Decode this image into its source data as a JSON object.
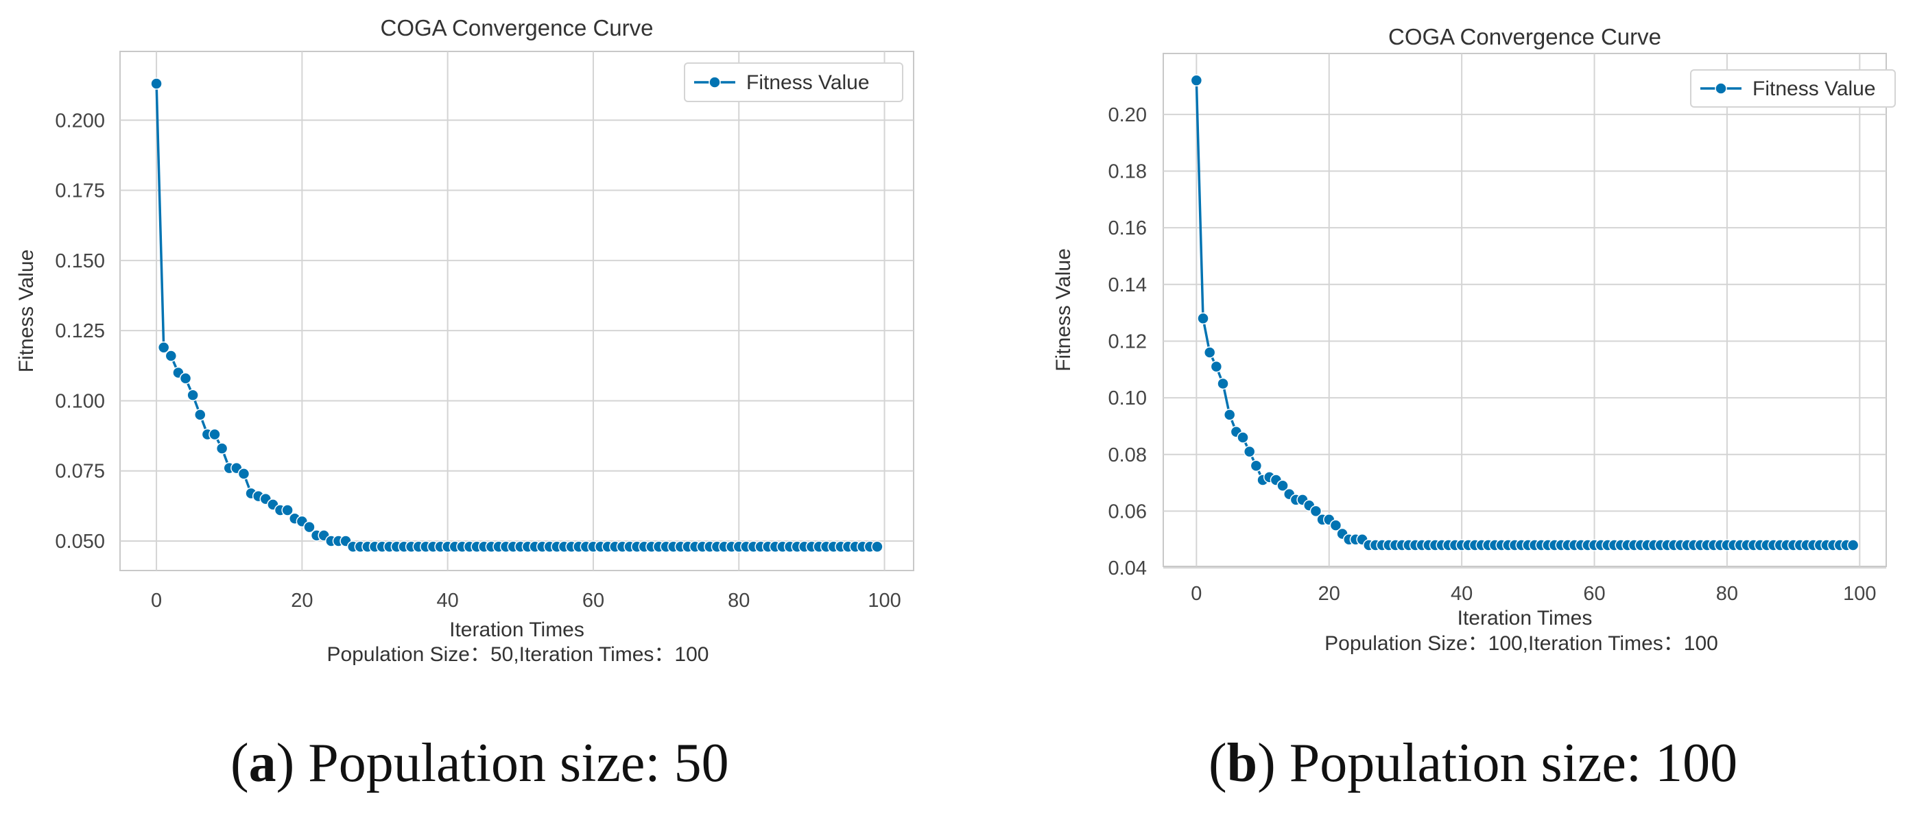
{
  "colors": {
    "series": "#0173b2",
    "grid": "#d4d4d4",
    "frame": "#c8c8c8"
  },
  "chart_data": [
    {
      "type": "line",
      "title": "COGA Convergence Curve",
      "xlabel": "Iteration Times",
      "ylabel": "Fitness Value",
      "note": "Population Size：50,Iteration Times：100",
      "legend": "Fitness Value",
      "legend_position": "top-right",
      "grid": true,
      "xlim": [
        -5,
        104
      ],
      "ylim": [
        0.0395,
        0.2245
      ],
      "xticks": [
        0,
        20,
        40,
        60,
        80,
        100
      ],
      "xtick_labels": [
        "0",
        "20",
        "40",
        "60",
        "80",
        "100"
      ],
      "yticks": [
        0.05,
        0.075,
        0.1,
        0.125,
        0.15,
        0.175,
        0.2
      ],
      "ytick_labels": [
        "0.050",
        "0.075",
        "0.100",
        "0.125",
        "0.150",
        "0.175",
        "0.200"
      ],
      "series": [
        {
          "name": "Fitness Value",
          "x": [
            0,
            1,
            2,
            3,
            4,
            5,
            6,
            7,
            8,
            9,
            10,
            11,
            12,
            13,
            14,
            15,
            16,
            17,
            18,
            19,
            20,
            21,
            22,
            23,
            24,
            25,
            26,
            27,
            28,
            29,
            30,
            31,
            32,
            33,
            34,
            35,
            36,
            37,
            38,
            39,
            40,
            41,
            42,
            43,
            44,
            45,
            46,
            47,
            48,
            49,
            50,
            51,
            52,
            53,
            54,
            55,
            56,
            57,
            58,
            59,
            60,
            61,
            62,
            63,
            64,
            65,
            66,
            67,
            68,
            69,
            70,
            71,
            72,
            73,
            74,
            75,
            76,
            77,
            78,
            79,
            80,
            81,
            82,
            83,
            84,
            85,
            86,
            87,
            88,
            89,
            90,
            91,
            92,
            93,
            94,
            95,
            96,
            97,
            98,
            99
          ],
          "values": [
            0.213,
            0.119,
            0.116,
            0.11,
            0.108,
            0.102,
            0.095,
            0.088,
            0.088,
            0.083,
            0.076,
            0.076,
            0.074,
            0.067,
            0.066,
            0.065,
            0.063,
            0.061,
            0.061,
            0.058,
            0.057,
            0.055,
            0.052,
            0.052,
            0.05,
            0.05,
            0.05,
            0.048,
            0.048,
            0.048,
            0.048,
            0.048,
            0.048,
            0.048,
            0.048,
            0.048,
            0.048,
            0.048,
            0.048,
            0.048,
            0.048,
            0.048,
            0.048,
            0.048,
            0.048,
            0.048,
            0.048,
            0.048,
            0.048,
            0.048,
            0.048,
            0.048,
            0.048,
            0.048,
            0.048,
            0.048,
            0.048,
            0.048,
            0.048,
            0.048,
            0.048,
            0.048,
            0.048,
            0.048,
            0.048,
            0.048,
            0.048,
            0.048,
            0.048,
            0.048,
            0.048,
            0.048,
            0.048,
            0.048,
            0.048,
            0.048,
            0.048,
            0.048,
            0.048,
            0.048,
            0.048,
            0.048,
            0.048,
            0.048,
            0.048,
            0.048,
            0.048,
            0.048,
            0.048,
            0.048,
            0.048,
            0.048,
            0.048,
            0.048,
            0.048,
            0.048,
            0.048,
            0.048,
            0.048,
            0.048
          ]
        }
      ],
      "caption_letter": "a",
      "caption_text": "Population size: 50"
    },
    {
      "type": "line",
      "title": "COGA Convergence Curve",
      "xlabel": "Iteration Times",
      "ylabel": "Fitness Value",
      "note": "Population Size：100,Iteration Times：100",
      "legend": "Fitness Value",
      "legend_position": "top-right",
      "grid": true,
      "xlim": [
        -5,
        104
      ],
      "ylim": [
        0.0405,
        0.2215
      ],
      "xticks": [
        0,
        20,
        40,
        60,
        80,
        100
      ],
      "xtick_labels": [
        "0",
        "20",
        "40",
        "60",
        "80",
        "100"
      ],
      "yticks": [
        0.04,
        0.06,
        0.08,
        0.1,
        0.12,
        0.14,
        0.16,
        0.18,
        0.2
      ],
      "ytick_labels": [
        "0.04",
        "0.06",
        "0.08",
        "0.10",
        "0.12",
        "0.14",
        "0.16",
        "0.18",
        "0.20"
      ],
      "series": [
        {
          "name": "Fitness Value",
          "x": [
            0,
            1,
            2,
            3,
            4,
            5,
            6,
            7,
            8,
            9,
            10,
            11,
            12,
            13,
            14,
            15,
            16,
            17,
            18,
            19,
            20,
            21,
            22,
            23,
            24,
            25,
            26,
            27,
            28,
            29,
            30,
            31,
            32,
            33,
            34,
            35,
            36,
            37,
            38,
            39,
            40,
            41,
            42,
            43,
            44,
            45,
            46,
            47,
            48,
            49,
            50,
            51,
            52,
            53,
            54,
            55,
            56,
            57,
            58,
            59,
            60,
            61,
            62,
            63,
            64,
            65,
            66,
            67,
            68,
            69,
            70,
            71,
            72,
            73,
            74,
            75,
            76,
            77,
            78,
            79,
            80,
            81,
            82,
            83,
            84,
            85,
            86,
            87,
            88,
            89,
            90,
            91,
            92,
            93,
            94,
            95,
            96,
            97,
            98,
            99
          ],
          "values": [
            0.212,
            0.128,
            0.116,
            0.111,
            0.105,
            0.094,
            0.088,
            0.086,
            0.081,
            0.076,
            0.071,
            0.072,
            0.071,
            0.069,
            0.066,
            0.064,
            0.064,
            0.062,
            0.06,
            0.057,
            0.057,
            0.055,
            0.052,
            0.05,
            0.05,
            0.05,
            0.048,
            0.048,
            0.048,
            0.048,
            0.048,
            0.048,
            0.048,
            0.048,
            0.048,
            0.048,
            0.048,
            0.048,
            0.048,
            0.048,
            0.048,
            0.048,
            0.048,
            0.048,
            0.048,
            0.048,
            0.048,
            0.048,
            0.048,
            0.048,
            0.048,
            0.048,
            0.048,
            0.048,
            0.048,
            0.048,
            0.048,
            0.048,
            0.048,
            0.048,
            0.048,
            0.048,
            0.048,
            0.048,
            0.048,
            0.048,
            0.048,
            0.048,
            0.048,
            0.048,
            0.048,
            0.048,
            0.048,
            0.048,
            0.048,
            0.048,
            0.048,
            0.048,
            0.048,
            0.048,
            0.048,
            0.048,
            0.048,
            0.048,
            0.048,
            0.048,
            0.048,
            0.048,
            0.048,
            0.048,
            0.048,
            0.048,
            0.048,
            0.048,
            0.048,
            0.048,
            0.048,
            0.048,
            0.048,
            0.048
          ]
        }
      ],
      "caption_letter": "b",
      "caption_text": "Population size: 100"
    }
  ]
}
